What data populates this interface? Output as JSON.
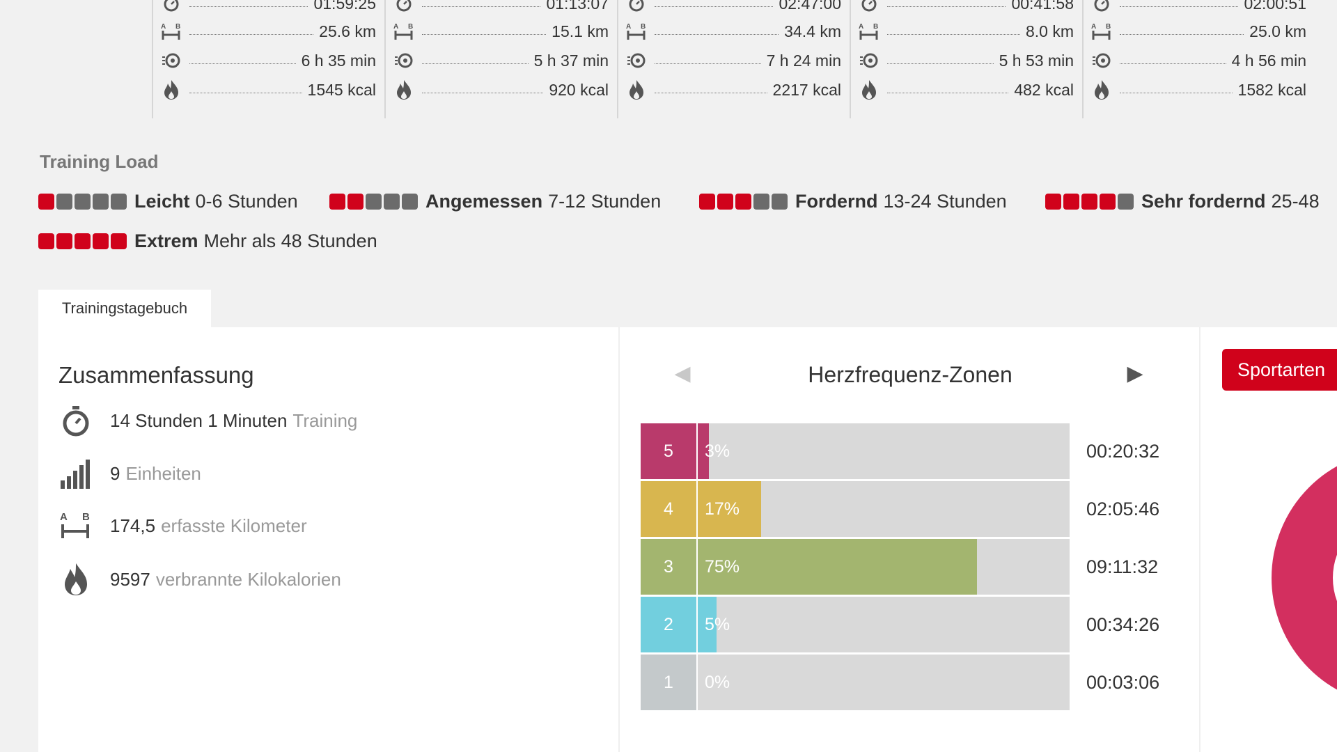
{
  "stats_columns": [
    {
      "time": "01:59:25",
      "distance": "25.6 km",
      "duration": "6 h 35 min",
      "calories": "1545 kcal"
    },
    {
      "time": "01:13:07",
      "distance": "15.1 km",
      "duration": "5 h 37 min",
      "calories": "920 kcal"
    },
    {
      "time": "02:47:00",
      "distance": "34.4 km",
      "duration": "7 h 24 min",
      "calories": "2217 kcal"
    },
    {
      "time": "00:41:58",
      "distance": "8.0 km",
      "duration": "5 h 53 min",
      "calories": "482 kcal"
    },
    {
      "time": "02:00:51",
      "distance": "25.0 km",
      "duration": "4 h 56 min",
      "calories": "1582 kcal"
    }
  ],
  "training_load": {
    "title": "Training Load",
    "levels": [
      {
        "name": "Leicht",
        "range": "0-6 Stunden",
        "filled": 1
      },
      {
        "name": "Angemessen",
        "range": "7-12 Stunden",
        "filled": 2
      },
      {
        "name": "Fordernd",
        "range": "13-24 Stunden",
        "filled": 3
      },
      {
        "name": "Sehr fordernd",
        "range": "25-48",
        "filled": 4
      },
      {
        "name": "Extrem",
        "range": "Mehr als 48 Stunden",
        "filled": 5
      }
    ],
    "accent_color": "#d0021b"
  },
  "tabs": {
    "diary": "Trainingstagebuch"
  },
  "summary": {
    "title": "Zusammenfassung",
    "training_value": "14 Stunden 1 Minuten",
    "training_label": "Training",
    "units_value": "9",
    "units_label": "Einheiten",
    "km_value": "174,5",
    "km_label": "erfasste Kilometer",
    "kcal_value": "9597",
    "kcal_label": "verbrannte Kilokalorien"
  },
  "hr_zones": {
    "title": "Herzfrequenz-Zonen",
    "zones": [
      {
        "zone": "5",
        "percent": 3,
        "percent_label": "3%",
        "time": "00:20:32",
        "color": "#b93a6b"
      },
      {
        "zone": "4",
        "percent": 17,
        "percent_label": "17%",
        "time": "02:05:46",
        "color": "#d8b64f"
      },
      {
        "zone": "3",
        "percent": 75,
        "percent_label": "75%",
        "time": "09:11:32",
        "color": "#a3b56f"
      },
      {
        "zone": "2",
        "percent": 5,
        "percent_label": "5%",
        "time": "00:34:26",
        "color": "#72cfde"
      },
      {
        "zone": "1",
        "percent": 0,
        "percent_label": "0%",
        "time": "00:03:06",
        "color": "#c4c9cb"
      }
    ]
  },
  "sports": {
    "button_label": "Sportarten",
    "chart_color": "#d32f5f"
  }
}
